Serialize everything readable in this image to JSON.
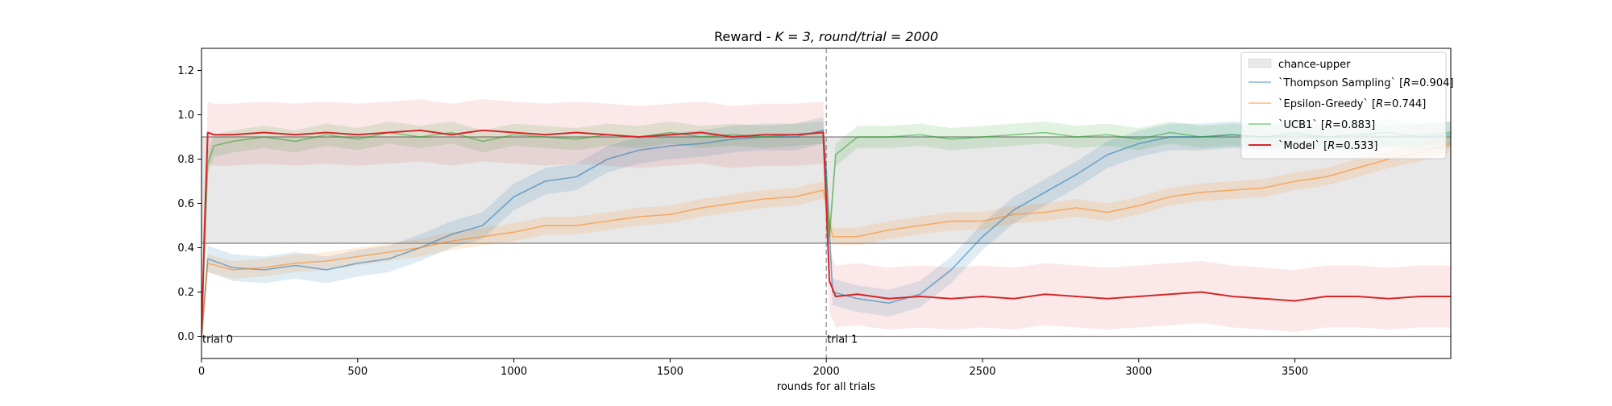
{
  "chart_data": {
    "type": "line",
    "title_prefix": "Reward - ",
    "title_math": "K = 3, round/trial = 2000",
    "xlabel": "rounds for all trials",
    "ylabel": "",
    "xlim": [
      0,
      3999
    ],
    "ylim": [
      -0.1,
      1.3
    ],
    "x_ticks": [
      0,
      500,
      1000,
      1500,
      2000,
      2500,
      3000,
      3500
    ],
    "y_ticks": [
      0.0,
      0.2,
      0.4,
      0.6,
      0.8,
      1.0,
      1.2
    ],
    "x_tick_labels": [
      "0",
      "500",
      "1000",
      "1500",
      "2000",
      "2500",
      "3000",
      "3500"
    ],
    "y_tick_labels": [
      "0.0",
      "0.2",
      "0.4",
      "0.6",
      "0.8",
      "1.0",
      "1.2"
    ],
    "grid": false,
    "legend_position": "top-right",
    "hlines": [
      0.0,
      0.42,
      0.9
    ],
    "trial_boundary_x": 2000,
    "chance_band": {
      "name": "chance-upper",
      "lower": 0.42,
      "upper": 0.9,
      "color": "#e8e8e8"
    },
    "annotations": [
      {
        "text": "trial 0",
        "x": 0,
        "y": 0.0
      },
      {
        "text": "trial 1",
        "x": 2000,
        "y": 0.0
      }
    ],
    "series": [
      {
        "name": "`Thompson Sampling` [R=0.904]",
        "legend_prefix": "`Thompson Sampling` [",
        "legend_var": "R",
        "legend_suffix": "=0.904]",
        "color": "#1f77b4",
        "band_halfwidth": 0.06,
        "x": [
          0,
          20,
          100,
          200,
          300,
          400,
          500,
          600,
          700,
          800,
          900,
          1000,
          1100,
          1200,
          1300,
          1400,
          1500,
          1600,
          1700,
          1800,
          1900,
          1990,
          2000,
          2020,
          2100,
          2200,
          2300,
          2400,
          2500,
          2600,
          2700,
          2800,
          2900,
          3000,
          3100,
          3200,
          3300,
          3400,
          3500,
          3600,
          3700,
          3800,
          3900,
          3999
        ],
        "y": [
          0.0,
          0.35,
          0.31,
          0.3,
          0.32,
          0.3,
          0.33,
          0.35,
          0.4,
          0.46,
          0.5,
          0.63,
          0.7,
          0.72,
          0.8,
          0.84,
          0.86,
          0.87,
          0.89,
          0.9,
          0.9,
          0.93,
          0.75,
          0.2,
          0.17,
          0.15,
          0.19,
          0.3,
          0.45,
          0.57,
          0.65,
          0.73,
          0.82,
          0.87,
          0.9,
          0.9,
          0.91,
          0.9,
          0.91,
          0.9,
          0.91,
          0.92,
          0.9,
          0.91
        ]
      },
      {
        "name": "`Epsilon-Greedy` [R=0.744]",
        "legend_prefix": "`Epsilon-Greedy` [",
        "legend_var": "R",
        "legend_suffix": "=0.744]",
        "color": "#ff7f0e",
        "band_halfwidth": 0.04,
        "x": [
          0,
          20,
          100,
          200,
          300,
          400,
          500,
          600,
          700,
          800,
          900,
          1000,
          1100,
          1200,
          1300,
          1400,
          1500,
          1600,
          1700,
          1800,
          1900,
          1990,
          2000,
          2020,
          2100,
          2200,
          2300,
          2400,
          2500,
          2600,
          2700,
          2800,
          2900,
          3000,
          3100,
          3200,
          3300,
          3400,
          3500,
          3600,
          3700,
          3800,
          3900,
          3999
        ],
        "y": [
          0.0,
          0.33,
          0.3,
          0.31,
          0.33,
          0.34,
          0.36,
          0.38,
          0.4,
          0.43,
          0.45,
          0.47,
          0.5,
          0.5,
          0.52,
          0.54,
          0.55,
          0.58,
          0.6,
          0.62,
          0.63,
          0.66,
          0.6,
          0.45,
          0.45,
          0.48,
          0.5,
          0.52,
          0.52,
          0.55,
          0.56,
          0.58,
          0.56,
          0.59,
          0.63,
          0.65,
          0.66,
          0.67,
          0.7,
          0.72,
          0.76,
          0.8,
          0.83,
          0.87
        ]
      },
      {
        "name": "`UCB1` [R=0.883]",
        "legend_prefix": "`UCB1` [",
        "legend_var": "R",
        "legend_suffix": "=0.883]",
        "color": "#2ca02c",
        "band_halfwidth": 0.05,
        "x": [
          0,
          10,
          20,
          40,
          100,
          200,
          300,
          400,
          500,
          600,
          700,
          800,
          900,
          1000,
          1100,
          1200,
          1300,
          1400,
          1500,
          1600,
          1700,
          1800,
          1900,
          1990,
          2000,
          2010,
          2030,
          2100,
          2200,
          2300,
          2400,
          2500,
          2600,
          2700,
          2800,
          2900,
          3000,
          3100,
          3200,
          3300,
          3400,
          3500,
          3600,
          3700,
          3800,
          3900,
          3999
        ],
        "y": [
          0.0,
          0.4,
          0.78,
          0.86,
          0.88,
          0.9,
          0.88,
          0.91,
          0.89,
          0.92,
          0.9,
          0.92,
          0.88,
          0.91,
          0.9,
          0.89,
          0.91,
          0.9,
          0.92,
          0.9,
          0.91,
          0.9,
          0.91,
          0.92,
          0.7,
          0.45,
          0.82,
          0.9,
          0.9,
          0.91,
          0.89,
          0.9,
          0.91,
          0.92,
          0.9,
          0.91,
          0.89,
          0.92,
          0.9,
          0.91,
          0.9,
          0.92,
          0.9,
          0.91,
          0.9,
          0.91,
          0.92
        ]
      },
      {
        "name": "`Model` [R=0.533]",
        "legend_prefix": "`Model` [",
        "legend_var": "R",
        "legend_suffix": "=0.533]",
        "color": "#d62728",
        "band_halfwidth": 0.14,
        "x": [
          0,
          10,
          20,
          40,
          100,
          200,
          300,
          400,
          500,
          600,
          700,
          800,
          900,
          1000,
          1100,
          1200,
          1300,
          1400,
          1500,
          1600,
          1700,
          1800,
          1900,
          1990,
          2000,
          2010,
          2030,
          2100,
          2200,
          2300,
          2400,
          2500,
          2600,
          2700,
          2800,
          2900,
          3000,
          3100,
          3200,
          3300,
          3400,
          3500,
          3600,
          3700,
          3800,
          3900,
          3999
        ],
        "y": [
          0.0,
          0.5,
          0.92,
          0.91,
          0.91,
          0.92,
          0.91,
          0.92,
          0.91,
          0.92,
          0.93,
          0.91,
          0.93,
          0.92,
          0.91,
          0.92,
          0.91,
          0.9,
          0.91,
          0.92,
          0.9,
          0.91,
          0.91,
          0.92,
          0.6,
          0.25,
          0.18,
          0.19,
          0.17,
          0.18,
          0.17,
          0.18,
          0.17,
          0.19,
          0.18,
          0.17,
          0.18,
          0.19,
          0.2,
          0.18,
          0.17,
          0.16,
          0.18,
          0.18,
          0.17,
          0.18,
          0.18
        ]
      }
    ]
  }
}
